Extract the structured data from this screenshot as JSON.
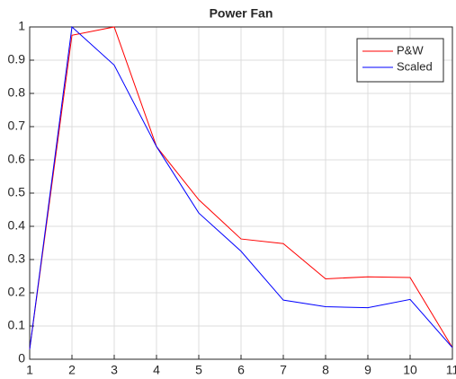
{
  "chart_data": {
    "type": "line",
    "title": "Power Fan",
    "x": [
      1,
      2,
      3,
      4,
      5,
      6,
      7,
      8,
      9,
      10,
      11
    ],
    "series": [
      {
        "name": "P&W",
        "color": "#ff0000",
        "values": [
          0.03,
          0.975,
          1.0,
          0.64,
          0.48,
          0.362,
          0.348,
          0.242,
          0.248,
          0.246,
          0.035
        ]
      },
      {
        "name": "Scaled",
        "color": "#0000ff",
        "values": [
          0.03,
          1.0,
          0.885,
          0.64,
          0.44,
          0.325,
          0.178,
          0.158,
          0.155,
          0.18,
          0.035
        ]
      }
    ],
    "xlim": [
      1,
      11
    ],
    "xticks": [
      1,
      2,
      3,
      4,
      5,
      6,
      7,
      8,
      9,
      10,
      11
    ],
    "ylim": [
      0,
      1
    ],
    "yticks": [
      0,
      0.1,
      0.2,
      0.3,
      0.4,
      0.5,
      0.6,
      0.7,
      0.8,
      0.9,
      1
    ],
    "grid": true,
    "legend": "top-right"
  }
}
